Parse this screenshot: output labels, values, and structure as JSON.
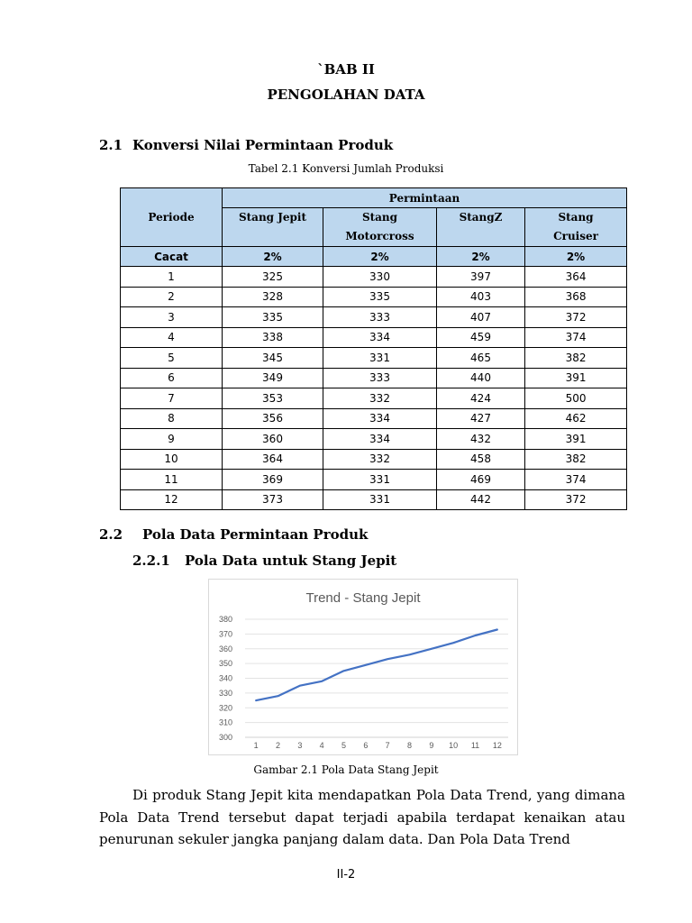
{
  "chapter": {
    "label": "`BAB II",
    "title": "PENGOLAHAN DATA"
  },
  "section_2_1": {
    "number": "2.1",
    "title": "Konversi Nilai Permintaan Produk"
  },
  "table": {
    "caption": "Tabel 2.1 Konversi Jumlah Produksi",
    "header_periode": "Periode",
    "header_permintaan": "Permintaan",
    "products": [
      {
        "line1": "Stang Jepit",
        "line2": ""
      },
      {
        "line1": "Stang",
        "line2": "Motorcross"
      },
      {
        "line1": "StangZ",
        "line2": ""
      },
      {
        "line1": "Stang",
        "line2": "Cruiser"
      }
    ],
    "cacat_label": "Cacat",
    "cacat_values": [
      "2%",
      "2%",
      "2%",
      "2%"
    ],
    "rows": [
      [
        "1",
        "325",
        "330",
        "397",
        "364"
      ],
      [
        "2",
        "328",
        "335",
        "403",
        "368"
      ],
      [
        "3",
        "335",
        "333",
        "407",
        "372"
      ],
      [
        "4",
        "338",
        "334",
        "459",
        "374"
      ],
      [
        "5",
        "345",
        "331",
        "465",
        "382"
      ],
      [
        "6",
        "349",
        "333",
        "440",
        "391"
      ],
      [
        "7",
        "353",
        "332",
        "424",
        "500"
      ],
      [
        "8",
        "356",
        "334",
        "427",
        "462"
      ],
      [
        "9",
        "360",
        "334",
        "432",
        "391"
      ],
      [
        "10",
        "364",
        "332",
        "458",
        "382"
      ],
      [
        "11",
        "369",
        "331",
        "469",
        "374"
      ],
      [
        "12",
        "373",
        "331",
        "442",
        "372"
      ]
    ]
  },
  "section_2_2": {
    "number": "2.2",
    "title": "Pola Data Permintaan Produk"
  },
  "section_2_2_1": {
    "number": "2.2.1",
    "title": "Pola Data untuk Stang Jepit"
  },
  "chart_data": {
    "type": "line",
    "title": "Trend - Stang Jepit",
    "x": [
      1,
      2,
      3,
      4,
      5,
      6,
      7,
      8,
      9,
      10,
      11,
      12
    ],
    "series": [
      {
        "values": [
          325,
          328,
          335,
          338,
          345,
          349,
          353,
          356,
          360,
          364,
          369,
          373
        ],
        "color": "#4472c4"
      }
    ],
    "ylim": [
      300,
      380
    ],
    "yticks": [
      300,
      310,
      320,
      330,
      340,
      350,
      360,
      370,
      380
    ],
    "grid": true,
    "legend": "none",
    "xlabel": "",
    "ylabel": ""
  },
  "figure_caption": "Gambar 2.1 Pola Data Stang Jepit",
  "paragraph": "Di produk Stang Jepit kita mendapatkan Pola Data Trend, yang dimana Pola Data Trend tersebut dapat terjadi apabila terdapat kenaikan atau penurunan sekuler jangka panjang dalam data. Dan Pola Data Trend",
  "page_number": "II-2"
}
